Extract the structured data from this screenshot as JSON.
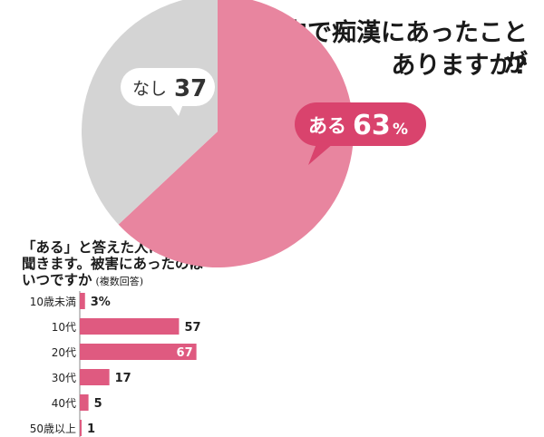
{
  "title": {
    "line1": "電車内で痴漢にあったことが",
    "line2": "ありますか?"
  },
  "colors": {
    "yes": "#e8859f",
    "no": "#d4d4d4",
    "callout_yes": "#d9436d",
    "bar": "#df5a80"
  },
  "chart_data": [
    {
      "type": "pie",
      "slices": [
        {
          "label": "ある",
          "value": 63,
          "unit": "%"
        },
        {
          "label": "なし",
          "value": 37
        }
      ]
    },
    {
      "type": "bar",
      "orientation": "horizontal",
      "title_lines": [
        "「ある」と答えた人に",
        "聞きます。被害にあったのは",
        "いつですか"
      ],
      "note": "(複数回答)",
      "categories": [
        "10歳未満",
        "10代",
        "20代",
        "30代",
        "40代",
        "50歳以上"
      ],
      "values": [
        3,
        57,
        67,
        17,
        5,
        1
      ],
      "value_labels": [
        "3%",
        "57",
        "67",
        "17",
        "5",
        "1"
      ]
    }
  ]
}
